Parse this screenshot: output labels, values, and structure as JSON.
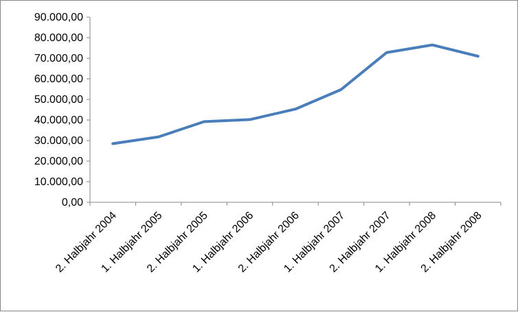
{
  "chart_data": {
    "type": "line",
    "title": "",
    "xlabel": "",
    "ylabel": "",
    "categories": [
      "2. Halbjahr 2004",
      "1. Halbjahr 2005",
      "2. Halbjahr 2005",
      "1. Halbjahr 2006",
      "2. Halbjahr 2006",
      "1. Halbjahr 2007",
      "2. Halbjahr 2007",
      "1. Halbjahr 2008",
      "2. Halbjahr 2008"
    ],
    "series": [
      {
        "values": [
          28500,
          31800,
          39200,
          40200,
          45300,
          54800,
          72800,
          76500,
          71000
        ],
        "color": "#4a7ebb"
      }
    ],
    "ylim": [
      0,
      90000
    ],
    "y_ticks": [
      0,
      10000,
      20000,
      30000,
      40000,
      50000,
      60000,
      70000,
      80000,
      90000
    ],
    "y_tick_labels": [
      "0,00",
      "10.000,00",
      "20.000,00",
      "30.000,00",
      "40.000,00",
      "50.000,00",
      "60.000,00",
      "70.000,00",
      "80.000,00",
      "90.000,00"
    ],
    "grid": false,
    "legend": "none"
  }
}
